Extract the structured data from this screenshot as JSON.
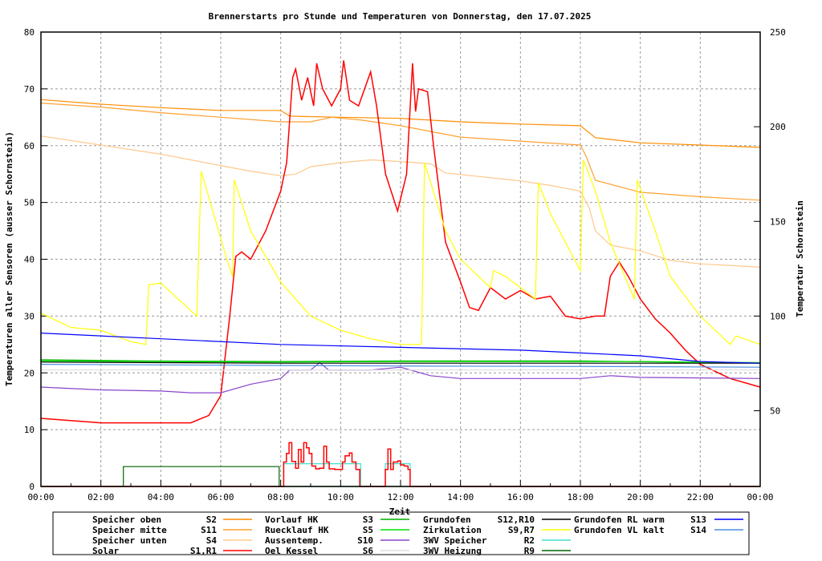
{
  "chart_data": {
    "type": "line",
    "title": "Brennerstarts pro Stunde und Temperaturen von Donnerstag, den 17.07.2025",
    "xlabel": "Zeit",
    "ylabel": "Temperaturen aller Sensoren (ausser Schornstein)",
    "y2label": "Temperatur Schornstein",
    "y2label_color": "#ff44ff",
    "xlim": [
      0,
      24
    ],
    "ylim": [
      0,
      80
    ],
    "y2lim": [
      10,
      250
    ],
    "xticks": [
      "00:00",
      "02:00",
      "04:00",
      "06:00",
      "08:00",
      "10:00",
      "12:00",
      "14:00",
      "16:00",
      "18:00",
      "20:00",
      "22:00",
      "00:00"
    ],
    "yticks": [
      "0",
      "10",
      "20",
      "30",
      "40",
      "50",
      "60",
      "70",
      "80"
    ],
    "y2ticks": [
      "50",
      "100",
      "150",
      "200",
      "250"
    ],
    "grid": true,
    "legend_placement": "bottom",
    "series": [
      {
        "name": "Speicher oben",
        "sensor": "S2",
        "color": "#ff8c00",
        "points": [
          [
            0,
            68.1
          ],
          [
            2,
            67.3
          ],
          [
            4,
            66.7
          ],
          [
            6,
            66.2
          ],
          [
            8,
            66.2
          ],
          [
            8.3,
            65.2
          ],
          [
            10,
            65
          ],
          [
            12,
            64.8
          ],
          [
            14,
            64.2
          ],
          [
            16,
            63.8
          ],
          [
            18,
            63.5
          ],
          [
            18.5,
            61.4
          ],
          [
            20,
            60.5
          ],
          [
            22,
            60.1
          ],
          [
            24,
            59.7
          ]
        ]
      },
      {
        "name": "Speicher mitte",
        "sensor": "S11",
        "color": "#ffa030",
        "points": [
          [
            0,
            67.5
          ],
          [
            2,
            66.8
          ],
          [
            4,
            65.8
          ],
          [
            6,
            65
          ],
          [
            8,
            64.2
          ],
          [
            9,
            64.2
          ],
          [
            9.7,
            65
          ],
          [
            10.7,
            64.5
          ],
          [
            12,
            63.5
          ],
          [
            14,
            61.5
          ],
          [
            16,
            60.8
          ],
          [
            18,
            60.1
          ],
          [
            18.2,
            58
          ],
          [
            18.5,
            53.9
          ],
          [
            20,
            51.8
          ],
          [
            22,
            51
          ],
          [
            24,
            50.4
          ]
        ]
      },
      {
        "name": "Speicher unten",
        "sensor": "S4",
        "color": "#ffc88c",
        "points": [
          [
            0,
            61.7
          ],
          [
            2,
            60.1
          ],
          [
            4,
            58.5
          ],
          [
            6,
            56.5
          ],
          [
            7,
            55.5
          ],
          [
            8,
            54.7
          ],
          [
            8.5,
            55
          ],
          [
            9,
            56.3
          ],
          [
            10,
            57
          ],
          [
            11,
            57.5
          ],
          [
            12,
            57.2
          ],
          [
            13,
            56.8
          ],
          [
            13.5,
            55.2
          ],
          [
            16,
            53.8
          ],
          [
            17,
            53
          ],
          [
            18,
            52
          ],
          [
            18.3,
            49
          ],
          [
            18.5,
            45
          ],
          [
            19,
            42.5
          ],
          [
            20,
            41.5
          ],
          [
            21,
            39.8
          ],
          [
            22,
            39.2
          ],
          [
            24,
            38.6
          ]
        ]
      },
      {
        "name": "Solar",
        "sensor": "S1,R1",
        "color": "#ff0000",
        "points": [
          [
            0,
            12
          ],
          [
            2,
            11.2
          ],
          [
            4,
            11.2
          ],
          [
            5,
            11.2
          ],
          [
            5.6,
            12.5
          ],
          [
            6,
            16
          ],
          [
            6.3,
            30
          ],
          [
            6.5,
            40.5
          ],
          [
            6.7,
            41.3
          ],
          [
            7,
            40
          ],
          [
            7.5,
            45
          ],
          [
            8,
            52
          ],
          [
            8.2,
            57
          ],
          [
            8.4,
            72
          ],
          [
            8.5,
            73.5
          ],
          [
            8.7,
            68
          ],
          [
            8.9,
            72
          ],
          [
            9.1,
            67
          ],
          [
            9.2,
            74.5
          ],
          [
            9.4,
            70
          ],
          [
            9.7,
            67
          ],
          [
            10,
            70
          ],
          [
            10.1,
            75
          ],
          [
            10.3,
            68
          ],
          [
            10.6,
            67
          ],
          [
            11,
            73
          ],
          [
            11.2,
            67
          ],
          [
            11.5,
            55
          ],
          [
            11.9,
            48.5
          ],
          [
            12.2,
            55
          ],
          [
            12.4,
            74.5
          ],
          [
            12.5,
            66
          ],
          [
            12.6,
            70
          ],
          [
            12.9,
            69.5
          ],
          [
            13.1,
            60
          ],
          [
            13.5,
            43
          ],
          [
            14,
            36
          ],
          [
            14.3,
            31.5
          ],
          [
            14.6,
            31
          ],
          [
            15,
            35
          ],
          [
            15.5,
            33
          ],
          [
            16,
            34.5
          ],
          [
            16.5,
            33
          ],
          [
            17,
            33.5
          ],
          [
            17.5,
            30
          ],
          [
            18,
            29.5
          ],
          [
            18.5,
            30
          ],
          [
            18.8,
            30
          ],
          [
            19,
            37
          ],
          [
            19.3,
            39.5
          ],
          [
            19.6,
            37
          ],
          [
            20,
            33
          ],
          [
            20.5,
            29.5
          ],
          [
            21,
            27
          ],
          [
            21.5,
            24
          ],
          [
            22,
            21.5
          ],
          [
            23,
            19
          ],
          [
            24,
            17.5
          ]
        ]
      },
      {
        "name": "Vorlauf HK",
        "sensor": "S3",
        "color": "#00b000",
        "points": [
          [
            0,
            22.3
          ],
          [
            3.5,
            22.1
          ],
          [
            8,
            22
          ],
          [
            12,
            22.1
          ],
          [
            18,
            22.1
          ],
          [
            24,
            21.7
          ]
        ]
      },
      {
        "name": "Ruecklauf HK",
        "sensor": "S5",
        "color": "#00e000",
        "points": [
          [
            0,
            22.1
          ],
          [
            8,
            21.9
          ],
          [
            12,
            22
          ],
          [
            20,
            22
          ],
          [
            24,
            21.8
          ]
        ]
      },
      {
        "name": "Aussentemp.",
        "sensor": "S10",
        "color": "#8844cc",
        "points": [
          [
            0,
            17.5
          ],
          [
            2,
            17
          ],
          [
            4,
            16.8
          ],
          [
            5,
            16.5
          ],
          [
            6,
            16.5
          ],
          [
            7,
            18
          ],
          [
            8,
            19
          ],
          [
            8.3,
            20.5
          ],
          [
            9,
            20.5
          ],
          [
            9.3,
            21.8
          ],
          [
            9.6,
            20.5
          ],
          [
            11,
            20.5
          ],
          [
            12,
            21
          ],
          [
            13,
            19.5
          ],
          [
            14,
            19
          ],
          [
            16,
            19
          ],
          [
            17,
            19
          ],
          [
            18,
            19
          ],
          [
            19,
            19.5
          ],
          [
            20,
            19.2
          ],
          [
            24,
            19
          ]
        ]
      },
      {
        "name": "Oel Kessel",
        "sensor": "S6",
        "color": "#dddddd",
        "points": [
          [
            0,
            20.5
          ],
          [
            24,
            20.5
          ]
        ]
      },
      {
        "name": "Grundofen",
        "sensor": "S12,R10",
        "color": "#000000",
        "points": [
          [
            0,
            21.9
          ],
          [
            8,
            21.7
          ],
          [
            24,
            21.7
          ]
        ]
      },
      {
        "name": "Zirkulation",
        "sensor": "S9,R7",
        "color": "#ffff00",
        "points": [
          [
            0,
            30.5
          ],
          [
            1,
            28
          ],
          [
            2,
            27.5
          ],
          [
            3,
            25.5
          ],
          [
            3.5,
            25
          ],
          [
            3.6,
            35.5
          ],
          [
            4,
            35.8
          ],
          [
            5.2,
            30
          ],
          [
            5.35,
            55.5
          ],
          [
            6.2,
            40
          ],
          [
            6.4,
            37
          ],
          [
            6.45,
            54
          ],
          [
            7,
            45
          ],
          [
            8,
            36
          ],
          [
            9,
            30
          ],
          [
            10,
            27.5
          ],
          [
            11,
            26
          ],
          [
            12,
            25
          ],
          [
            12.7,
            25
          ],
          [
            12.8,
            57
          ],
          [
            13.5,
            45
          ],
          [
            14,
            40
          ],
          [
            15,
            35
          ],
          [
            15.1,
            38
          ],
          [
            15.5,
            37
          ],
          [
            16,
            35
          ],
          [
            16.5,
            33
          ],
          [
            16.6,
            53.5
          ],
          [
            17,
            48
          ],
          [
            18,
            38
          ],
          [
            18.1,
            57.5
          ],
          [
            18.5,
            52
          ],
          [
            19,
            43
          ],
          [
            19.8,
            33
          ],
          [
            19.9,
            54
          ],
          [
            20.5,
            45
          ],
          [
            21,
            37
          ],
          [
            22,
            30
          ],
          [
            23,
            25
          ],
          [
            23.2,
            26.5
          ],
          [
            24,
            25
          ]
        ]
      },
      {
        "name": "3WV Speicher",
        "sensor": "R2",
        "color": "#40e0d0",
        "steps": [
          [
            0,
            0
          ],
          [
            8.1,
            4
          ],
          [
            10.67,
            0
          ],
          [
            11.49,
            4
          ],
          [
            12.32,
            0
          ],
          [
            24,
            0
          ]
        ]
      },
      {
        "name": "3WV Heizung",
        "sensor": "R9",
        "color": "#006400",
        "steps": [
          [
            0,
            0
          ],
          [
            2.75,
            3.5
          ],
          [
            7.95,
            0
          ],
          [
            24,
            0
          ]
        ]
      },
      {
        "name": "Grundofen RL warm",
        "sensor": "S13",
        "color": "#0000ff",
        "points": [
          [
            0,
            27
          ],
          [
            4,
            26
          ],
          [
            8,
            25
          ],
          [
            12,
            24.5
          ],
          [
            16,
            24
          ],
          [
            18,
            23.5
          ],
          [
            20,
            23
          ],
          [
            22,
            22
          ],
          [
            24,
            21.7
          ]
        ]
      },
      {
        "name": "Grundofen VL kalt",
        "sensor": "S14",
        "color": "#4a90e0",
        "points": [
          [
            0,
            21.5
          ],
          [
            8,
            21.3
          ],
          [
            12,
            21.2
          ],
          [
            20,
            21.1
          ],
          [
            24,
            21
          ]
        ]
      },
      {
        "name": "Brennerstarts",
        "sensor": "",
        "color": "#ff0000",
        "legend": false,
        "steps": [
          [
            0,
            0
          ],
          [
            8.1,
            4.3
          ],
          [
            8.19,
            5.8
          ],
          [
            8.28,
            7.7
          ],
          [
            8.37,
            4.4
          ],
          [
            8.5,
            3.2
          ],
          [
            8.59,
            6.5
          ],
          [
            8.68,
            4.3
          ],
          [
            8.77,
            7.7
          ],
          [
            8.86,
            6.8
          ],
          [
            8.95,
            5.8
          ],
          [
            9.04,
            3.6
          ],
          [
            9.17,
            3.1
          ],
          [
            9.3,
            3.2
          ],
          [
            9.44,
            7.1
          ],
          [
            9.53,
            4.3
          ],
          [
            9.62,
            3.1
          ],
          [
            9.8,
            3.0
          ],
          [
            10.06,
            4.3
          ],
          [
            10.15,
            5.4
          ],
          [
            10.29,
            5.9
          ],
          [
            10.38,
            4.3
          ],
          [
            10.51,
            3.0
          ],
          [
            10.64,
            0
          ],
          [
            11.49,
            3.0
          ],
          [
            11.58,
            6.6
          ],
          [
            11.67,
            3.0
          ],
          [
            11.76,
            4.3
          ],
          [
            11.91,
            4.5
          ],
          [
            12.0,
            3.8
          ],
          [
            12.12,
            3.6
          ],
          [
            12.25,
            3.0
          ],
          [
            12.32,
            0
          ],
          [
            24,
            0
          ]
        ]
      }
    ]
  }
}
